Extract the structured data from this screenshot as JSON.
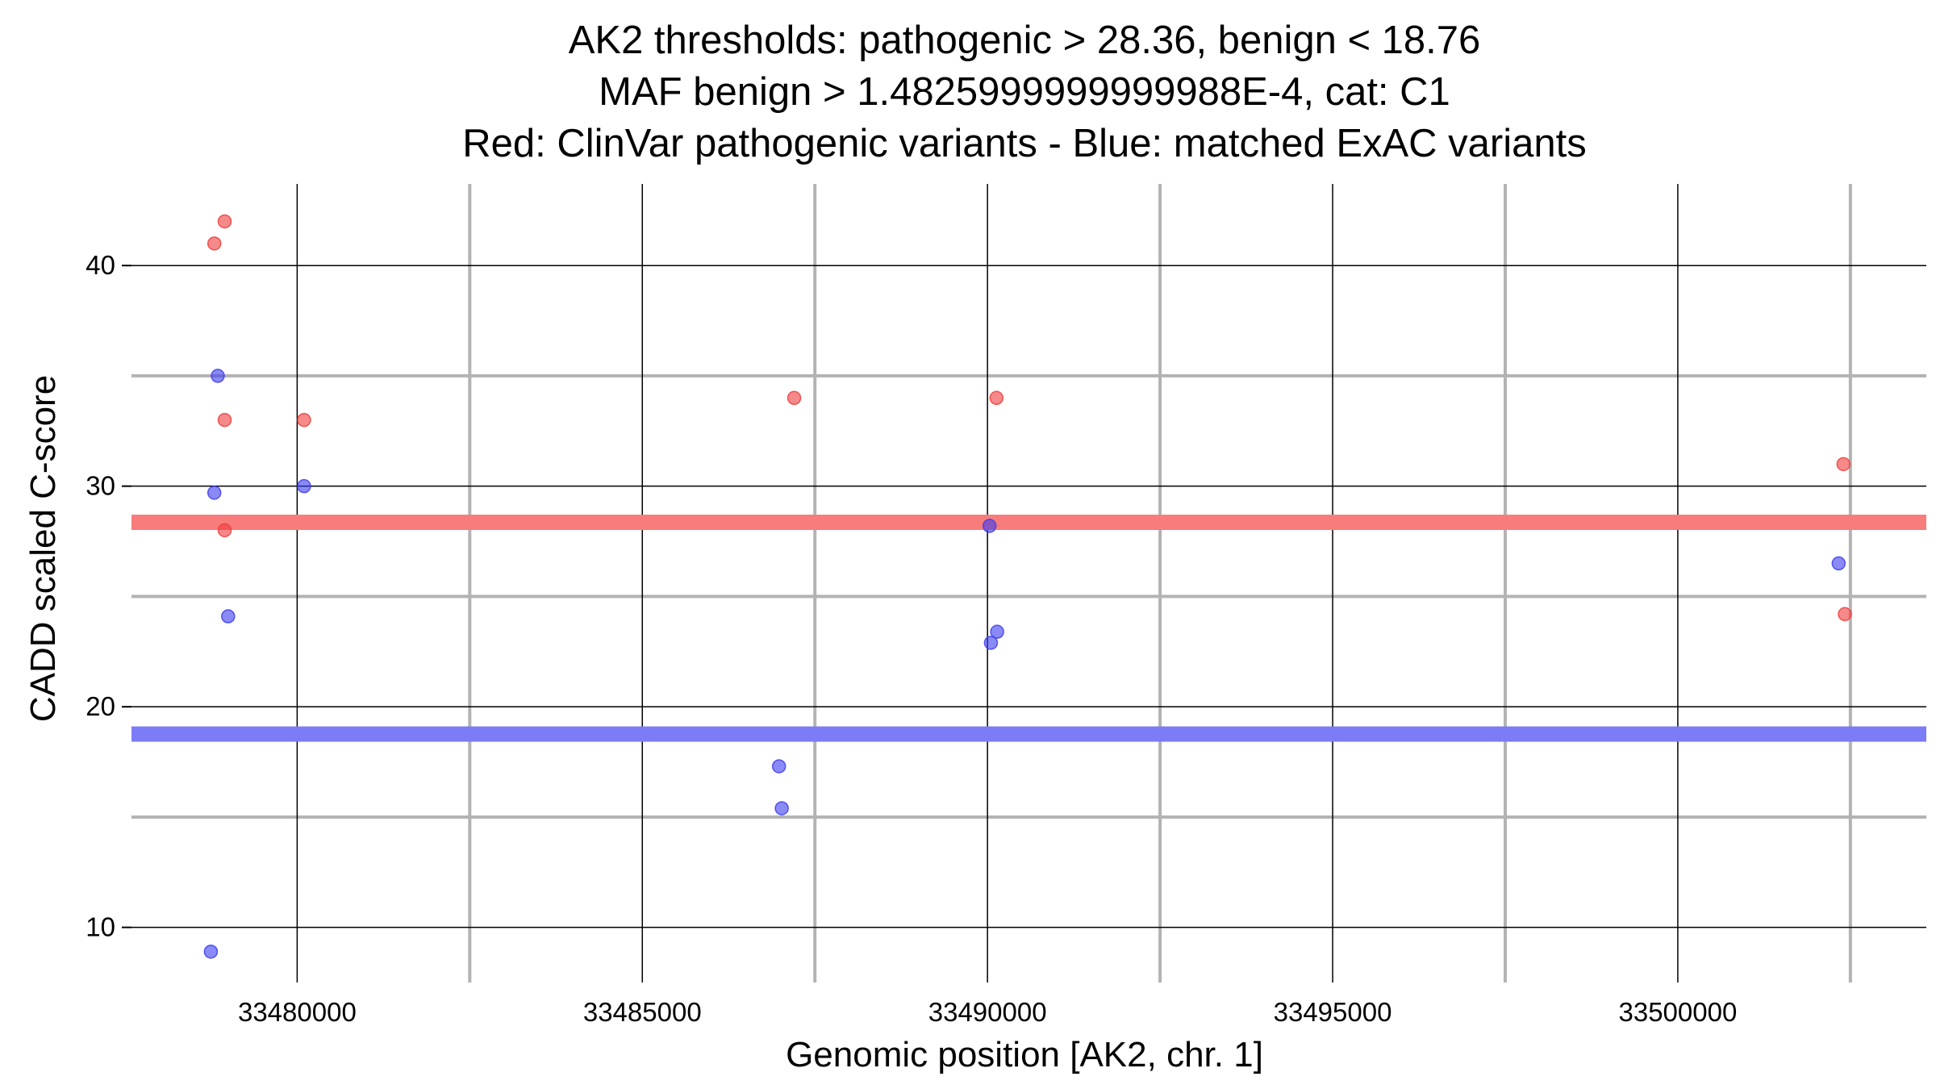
{
  "chart_data": {
    "type": "scatter",
    "title": [
      "AK2 thresholds: pathogenic > 28.36, benign < 18.76",
      "MAF benign > 1.4825999999999988E-4, cat: C1",
      "Red: ClinVar pathogenic variants - Blue: matched ExAC variants"
    ],
    "xlabel": "Genomic position [AK2, chr. 1]",
    "ylabel": "CADD scaled C-score",
    "xlim": [
      33477600,
      33503600
    ],
    "ylim": [
      7.5,
      43.7
    ],
    "x_major_ticks": [
      33480000,
      33485000,
      33490000,
      33495000,
      33500000
    ],
    "x_major_tick_labels": [
      "33480000",
      "33485000",
      "33490000",
      "33495000",
      "33500000"
    ],
    "x_minor_grid": [
      33482500,
      33487500,
      33492500,
      33497500,
      33502500
    ],
    "y_major_ticks": [
      10,
      20,
      30,
      40
    ],
    "y_major_tick_labels": [
      "10",
      "20",
      "30",
      "40"
    ],
    "y_minor_grid": [
      15,
      25,
      35
    ],
    "thresholds": [
      {
        "name": "pathogenic",
        "value": 28.36,
        "color": "#f87c7c"
      },
      {
        "name": "benign",
        "value": 18.76,
        "color": "#7c7cf6"
      }
    ],
    "series": [
      {
        "name": "ClinVar pathogenic variants",
        "color": "#f03c3c",
        "points": [
          {
            "x": 33478800,
            "y": 41.0
          },
          {
            "x": 33478950,
            "y": 42.0
          },
          {
            "x": 33478950,
            "y": 33.0
          },
          {
            "x": 33478950,
            "y": 28.0
          },
          {
            "x": 33480100,
            "y": 33.0
          },
          {
            "x": 33487200,
            "y": 34.0
          },
          {
            "x": 33490130,
            "y": 34.0
          },
          {
            "x": 33502400,
            "y": 31.0
          },
          {
            "x": 33502420,
            "y": 24.2
          }
        ]
      },
      {
        "name": "matched ExAC variants",
        "color": "#3c3cf0",
        "points": [
          {
            "x": 33478850,
            "y": 35.0
          },
          {
            "x": 33478800,
            "y": 29.7
          },
          {
            "x": 33479000,
            "y": 24.1
          },
          {
            "x": 33478750,
            "y": 8.9
          },
          {
            "x": 33480100,
            "y": 30.0
          },
          {
            "x": 33486980,
            "y": 17.3
          },
          {
            "x": 33487020,
            "y": 15.4
          },
          {
            "x": 33490030,
            "y": 28.2
          },
          {
            "x": 33490050,
            "y": 22.9
          },
          {
            "x": 33490140,
            "y": 23.4
          },
          {
            "x": 33502330,
            "y": 26.5
          }
        ]
      }
    ]
  }
}
